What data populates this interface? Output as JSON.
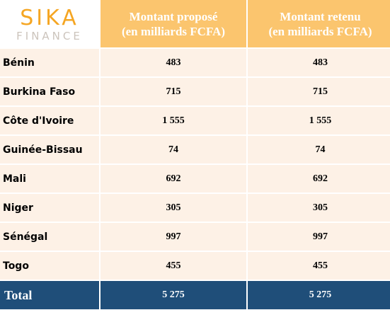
{
  "logo": {
    "brand_top": "SIKA",
    "brand_bottom": "FINANCE"
  },
  "headers": [
    {
      "line1": "Montant proposé",
      "line2": "(en milliards FCFA)"
    },
    {
      "line1": "Montant retenu",
      "line2": "(en milliards FCFA)"
    }
  ],
  "rows": [
    {
      "country": "Bénin",
      "proposed": "483",
      "retained": "483"
    },
    {
      "country": "Burkina Faso",
      "proposed": "715",
      "retained": "715"
    },
    {
      "country": "Côte d'Ivoire",
      "proposed": "1 555",
      "retained": "1 555"
    },
    {
      "country": "Guinée-Bissau",
      "proposed": "74",
      "retained": "74"
    },
    {
      "country": "Mali",
      "proposed": "692",
      "retained": "692"
    },
    {
      "country": "Niger",
      "proposed": "305",
      "retained": "305"
    },
    {
      "country": "Sénégal",
      "proposed": "997",
      "retained": "997"
    },
    {
      "country": "Togo",
      "proposed": "455",
      "retained": "455"
    }
  ],
  "total": {
    "label": "Total",
    "proposed": "5 275",
    "retained": "5 275"
  },
  "colors": {
    "header_bg": "#fbc56e",
    "row_bg": "#fdf1e6",
    "total_bg": "#1f4e79",
    "logo_accent": "#f5a623",
    "logo_grey": "#ccc4bc"
  }
}
